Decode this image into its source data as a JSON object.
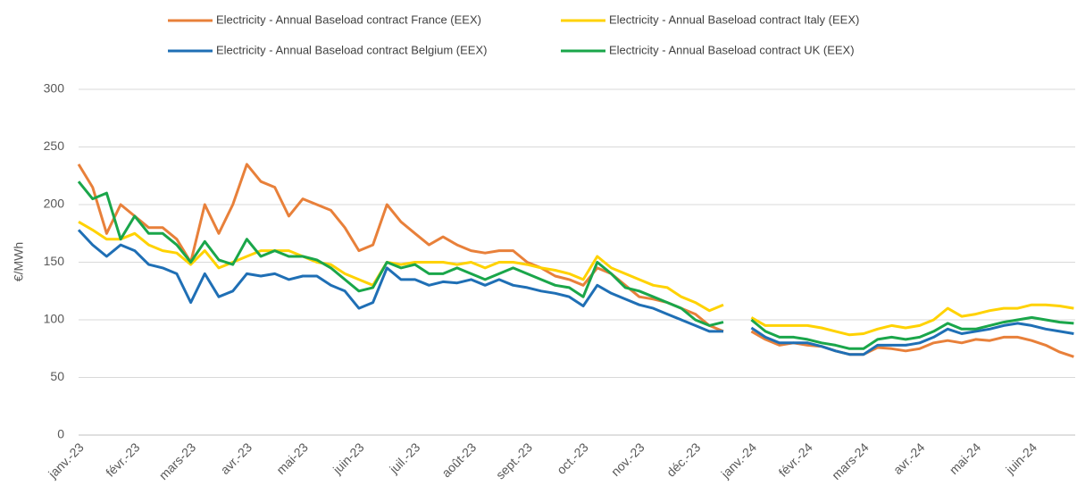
{
  "chart_data": {
    "type": "line",
    "y_label": "€/MWh",
    "categories": [
      "janv.-23",
      null,
      null,
      null,
      "févr.-23",
      null,
      null,
      null,
      "mars-23",
      null,
      null,
      null,
      "avr.-23",
      null,
      null,
      null,
      "mai-23",
      null,
      null,
      null,
      "juin-23",
      null,
      null,
      null,
      "juil.-23",
      null,
      null,
      null,
      "août-23",
      null,
      null,
      null,
      "sept.-23",
      null,
      null,
      null,
      "oct.-23",
      null,
      null,
      null,
      "nov.-23",
      null,
      null,
      null,
      "déc.-23",
      null,
      null,
      null,
      "janv.-24",
      null,
      null,
      null,
      "févr.-24",
      null,
      null,
      null,
      "mars-24",
      null,
      null,
      null,
      "avr.-24",
      null,
      null,
      null,
      "mai-24",
      null,
      null,
      null,
      "juin-24",
      null,
      null,
      null
    ],
    "series": [
      {
        "name": "Electricity - Annual Baseload contract France (EEX)",
        "color": "#e8803a",
        "values": [
          235,
          215,
          175,
          200,
          190,
          180,
          180,
          170,
          150,
          200,
          175,
          200,
          235,
          220,
          215,
          190,
          205,
          200,
          195,
          180,
          160,
          165,
          200,
          185,
          175,
          165,
          172,
          165,
          160,
          158,
          160,
          160,
          150,
          145,
          138,
          135,
          130,
          145,
          140,
          130,
          120,
          118,
          115,
          110,
          105,
          95,
          90,
          null,
          90,
          83,
          78,
          80,
          78,
          77,
          73,
          70,
          70,
          76,
          75,
          73,
          75,
          80,
          82,
          80,
          83,
          82,
          85,
          85,
          82,
          78,
          72,
          68
        ]
      },
      {
        "name": "Electricity - Annual Baseload contract Italy (EEX)",
        "color": "#ffd200",
        "values": [
          185,
          178,
          170,
          170,
          175,
          165,
          160,
          158,
          148,
          160,
          145,
          150,
          155,
          160,
          160,
          160,
          155,
          150,
          148,
          140,
          135,
          130,
          150,
          148,
          150,
          150,
          150,
          148,
          150,
          145,
          150,
          150,
          148,
          145,
          143,
          140,
          135,
          155,
          145,
          140,
          135,
          130,
          128,
          120,
          115,
          108,
          113,
          null,
          102,
          95,
          95,
          95,
          95,
          93,
          90,
          87,
          88,
          92,
          95,
          93,
          95,
          100,
          110,
          103,
          105,
          108,
          110,
          110,
          113,
          113,
          112,
          110
        ]
      },
      {
        "name": "Electricity - Annual Baseload contract Belgium (EEX)",
        "color": "#1f6fb5",
        "values": [
          178,
          165,
          155,
          165,
          160,
          148,
          145,
          140,
          115,
          140,
          120,
          125,
          140,
          138,
          140,
          135,
          138,
          138,
          130,
          125,
          110,
          115,
          145,
          135,
          135,
          130,
          133,
          132,
          135,
          130,
          135,
          130,
          128,
          125,
          123,
          120,
          112,
          130,
          123,
          118,
          113,
          110,
          105,
          100,
          95,
          90,
          90,
          null,
          93,
          85,
          80,
          80,
          80,
          77,
          73,
          70,
          70,
          78,
          78,
          78,
          80,
          85,
          92,
          88,
          90,
          92,
          95,
          97,
          95,
          92,
          90,
          88
        ]
      },
      {
        "name": "Electricity - Annual Baseload contract UK (EEX)",
        "color": "#1aa64a",
        "values": [
          220,
          205,
          210,
          170,
          190,
          175,
          175,
          165,
          150,
          168,
          152,
          148,
          170,
          155,
          160,
          155,
          155,
          152,
          145,
          135,
          125,
          128,
          150,
          145,
          148,
          140,
          140,
          145,
          140,
          135,
          140,
          145,
          140,
          135,
          130,
          128,
          120,
          150,
          140,
          128,
          125,
          120,
          115,
          110,
          100,
          95,
          98,
          null,
          100,
          90,
          85,
          85,
          83,
          80,
          78,
          75,
          75,
          83,
          85,
          83,
          85,
          90,
          97,
          92,
          92,
          95,
          98,
          100,
          102,
          100,
          98,
          97
        ]
      }
    ],
    "ylim": [
      0,
      300
    ],
    "yticks": [
      0,
      50,
      100,
      150,
      200,
      250,
      300
    ],
    "grid": true,
    "legend": "top"
  }
}
